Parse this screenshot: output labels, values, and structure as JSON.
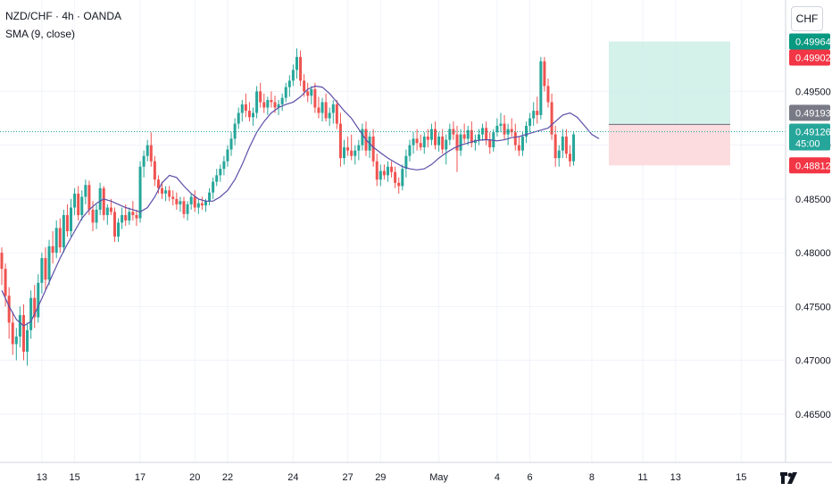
{
  "header": {
    "symbol_line": "NZD/CHF · 4h · OANDA",
    "indicator_line": "SMA (9, close)"
  },
  "currency_button": "CHF",
  "colors": {
    "up": "#26a69a",
    "down": "#ef5350",
    "sma": "#5b4ea8",
    "profit_zone": "#cdeee6",
    "loss_zone": "#fbd6d9",
    "target_tag": "#089981",
    "stop_tag": "#f23645",
    "last_price_line": "#26a69a"
  },
  "price_tags": [
    {
      "value": "0.49964",
      "label": "",
      "kind": "target"
    },
    {
      "value": "0.49902",
      "label": "",
      "kind": "stop-red"
    },
    {
      "value": "0.49193",
      "label": "",
      "kind": "entry"
    },
    {
      "value": "0.49126",
      "label": "45:00",
      "kind": "last"
    },
    {
      "value": "0.48812",
      "label": "",
      "kind": "stop"
    }
  ],
  "chart_data": {
    "type": "candlestick",
    "title": "",
    "xlabel": "",
    "ylabel": "",
    "y_axis_side": "right",
    "ylim": [
      0.4605,
      0.5035
    ],
    "yticks": [
      "0.46500",
      "0.47000",
      "0.47500",
      "0.48000",
      "0.48500",
      "0.49000",
      "0.49500"
    ],
    "x_tick_labels": [
      "13",
      "15",
      "17",
      "20",
      "22",
      "24",
      "27",
      "29",
      "May",
      "4",
      "6",
      "8",
      "11",
      "13",
      "15"
    ],
    "x_tick_candle_index": [
      11,
      20,
      38,
      53,
      62,
      80,
      95,
      104,
      120,
      136,
      145,
      162,
      176,
      185,
      203
    ],
    "grid": true,
    "candles_ohlc": [
      [
        0.48,
        0.4805,
        0.477,
        0.4785
      ],
      [
        0.4785,
        0.479,
        0.475,
        0.476
      ],
      [
        0.476,
        0.4768,
        0.472,
        0.4735
      ],
      [
        0.4735,
        0.4745,
        0.4705,
        0.4715
      ],
      [
        0.4715,
        0.473,
        0.47,
        0.4722
      ],
      [
        0.4722,
        0.475,
        0.4712,
        0.4742
      ],
      [
        0.4742,
        0.4752,
        0.47,
        0.4708
      ],
      [
        0.4708,
        0.4735,
        0.4695,
        0.4728
      ],
      [
        0.4728,
        0.4765,
        0.472,
        0.4758
      ],
      [
        0.4758,
        0.477,
        0.473,
        0.474
      ],
      [
        0.474,
        0.478,
        0.4735,
        0.4772
      ],
      [
        0.4772,
        0.48,
        0.4762,
        0.4795
      ],
      [
        0.4795,
        0.4805,
        0.4765,
        0.4775
      ],
      [
        0.4775,
        0.4812,
        0.477,
        0.4806
      ],
      [
        0.4806,
        0.482,
        0.479,
        0.48
      ],
      [
        0.48,
        0.483,
        0.4795,
        0.4823
      ],
      [
        0.4823,
        0.4832,
        0.48,
        0.4805
      ],
      [
        0.4805,
        0.484,
        0.48,
        0.4835
      ],
      [
        0.4835,
        0.4845,
        0.4815,
        0.482
      ],
      [
        0.482,
        0.485,
        0.4815,
        0.4842
      ],
      [
        0.4842,
        0.486,
        0.4835,
        0.4855
      ],
      [
        0.4855,
        0.4862,
        0.483,
        0.4835
      ],
      [
        0.4835,
        0.4858,
        0.483,
        0.4852
      ],
      [
        0.4852,
        0.4868,
        0.4845,
        0.4863
      ],
      [
        0.4863,
        0.4867,
        0.4835,
        0.484
      ],
      [
        0.484,
        0.4848,
        0.482,
        0.4828
      ],
      [
        0.4828,
        0.4845,
        0.4822,
        0.484
      ],
      [
        0.484,
        0.4865,
        0.4835,
        0.486
      ],
      [
        0.486,
        0.4862,
        0.483,
        0.4835
      ],
      [
        0.4835,
        0.4845,
        0.4826,
        0.4842
      ],
      [
        0.4842,
        0.485,
        0.4835,
        0.4838
      ],
      [
        0.4838,
        0.4842,
        0.481,
        0.4815
      ],
      [
        0.4815,
        0.4832,
        0.481,
        0.4828
      ],
      [
        0.4828,
        0.4842,
        0.4822,
        0.4835
      ],
      [
        0.4835,
        0.4845,
        0.4825,
        0.483
      ],
      [
        0.483,
        0.4842,
        0.4826,
        0.4838
      ],
      [
        0.4838,
        0.4848,
        0.483,
        0.4835
      ],
      [
        0.4835,
        0.484,
        0.4825,
        0.4832
      ],
      [
        0.4832,
        0.4885,
        0.4828,
        0.488
      ],
      [
        0.488,
        0.4895,
        0.487,
        0.489
      ],
      [
        0.489,
        0.4905,
        0.4885,
        0.49
      ],
      [
        0.49,
        0.4912,
        0.488,
        0.4885
      ],
      [
        0.4885,
        0.489,
        0.4862,
        0.4868
      ],
      [
        0.4868,
        0.4872,
        0.4855,
        0.486
      ],
      [
        0.486,
        0.4866,
        0.485,
        0.4855
      ],
      [
        0.4855,
        0.4862,
        0.4848,
        0.4858
      ],
      [
        0.4858,
        0.4862,
        0.4848,
        0.4852
      ],
      [
        0.4852,
        0.4858,
        0.4844,
        0.485
      ],
      [
        0.485,
        0.4856,
        0.484,
        0.4845
      ],
      [
        0.4845,
        0.4852,
        0.4838,
        0.4848
      ],
      [
        0.4848,
        0.4852,
        0.4832,
        0.4836
      ],
      [
        0.4836,
        0.4848,
        0.483,
        0.4845
      ],
      [
        0.4845,
        0.4855,
        0.484,
        0.4852
      ],
      [
        0.4852,
        0.4858,
        0.4838,
        0.4842
      ],
      [
        0.4842,
        0.485,
        0.4836,
        0.4846
      ],
      [
        0.4846,
        0.4852,
        0.484,
        0.4844
      ],
      [
        0.4844,
        0.485,
        0.4838,
        0.4848
      ],
      [
        0.4848,
        0.486,
        0.4844,
        0.4856
      ],
      [
        0.4856,
        0.487,
        0.485,
        0.4866
      ],
      [
        0.4866,
        0.4878,
        0.4862,
        0.4872
      ],
      [
        0.4872,
        0.4882,
        0.4866,
        0.4878
      ],
      [
        0.4878,
        0.489,
        0.4872,
        0.4885
      ],
      [
        0.4885,
        0.49,
        0.488,
        0.4896
      ],
      [
        0.4896,
        0.4912,
        0.489,
        0.4906
      ],
      [
        0.4906,
        0.4925,
        0.49,
        0.492
      ],
      [
        0.492,
        0.4935,
        0.4915,
        0.493
      ],
      [
        0.493,
        0.4942,
        0.4922,
        0.4938
      ],
      [
        0.4938,
        0.4948,
        0.4926,
        0.4932
      ],
      [
        0.4932,
        0.494,
        0.4922,
        0.4926
      ],
      [
        0.4926,
        0.4935,
        0.4918,
        0.493
      ],
      [
        0.493,
        0.4955,
        0.4925,
        0.495
      ],
      [
        0.495,
        0.4958,
        0.4935,
        0.494
      ],
      [
        0.494,
        0.4948,
        0.493,
        0.4935
      ],
      [
        0.4935,
        0.4945,
        0.4928,
        0.4942
      ],
      [
        0.4942,
        0.495,
        0.4935,
        0.494
      ],
      [
        0.494,
        0.4946,
        0.493,
        0.4935
      ],
      [
        0.4935,
        0.4942,
        0.4928,
        0.4938
      ],
      [
        0.4938,
        0.4948,
        0.4932,
        0.4944
      ],
      [
        0.4944,
        0.4958,
        0.494,
        0.4954
      ],
      [
        0.4954,
        0.4965,
        0.4945,
        0.496
      ],
      [
        0.496,
        0.4975,
        0.4955,
        0.497
      ],
      [
        0.497,
        0.499,
        0.4962,
        0.4982
      ],
      [
        0.4982,
        0.4988,
        0.4955,
        0.496
      ],
      [
        0.496,
        0.4966,
        0.4945,
        0.495
      ],
      [
        0.495,
        0.4958,
        0.494,
        0.4946
      ],
      [
        0.4946,
        0.4955,
        0.4938,
        0.4952
      ],
      [
        0.4952,
        0.4958,
        0.493,
        0.4935
      ],
      [
        0.4935,
        0.4945,
        0.4925,
        0.493
      ],
      [
        0.493,
        0.4944,
        0.4922,
        0.494
      ],
      [
        0.494,
        0.4948,
        0.4922,
        0.4925
      ],
      [
        0.4925,
        0.4935,
        0.4918,
        0.493
      ],
      [
        0.493,
        0.4942,
        0.492,
        0.4938
      ],
      [
        0.4938,
        0.4942,
        0.4915,
        0.492
      ],
      [
        0.492,
        0.493,
        0.488,
        0.4888
      ],
      [
        0.4888,
        0.4905,
        0.4882,
        0.4898
      ],
      [
        0.4898,
        0.4908,
        0.489,
        0.4895
      ],
      [
        0.4895,
        0.491,
        0.4886,
        0.489
      ],
      [
        0.489,
        0.49,
        0.4882,
        0.4895
      ],
      [
        0.4895,
        0.4905,
        0.4886,
        0.49
      ],
      [
        0.49,
        0.492,
        0.4895,
        0.4915
      ],
      [
        0.4915,
        0.4922,
        0.489,
        0.4895
      ],
      [
        0.4895,
        0.4912,
        0.4888,
        0.4908
      ],
      [
        0.4908,
        0.4915,
        0.488,
        0.4885
      ],
      [
        0.4885,
        0.4892,
        0.4862,
        0.4868
      ],
      [
        0.4868,
        0.4882,
        0.4862,
        0.4876
      ],
      [
        0.4876,
        0.4882,
        0.4868,
        0.4872
      ],
      [
        0.4872,
        0.4885,
        0.4866,
        0.488
      ],
      [
        0.488,
        0.4885,
        0.487,
        0.4875
      ],
      [
        0.4875,
        0.488,
        0.486,
        0.4865
      ],
      [
        0.4865,
        0.487,
        0.4855,
        0.4862
      ],
      [
        0.4862,
        0.4882,
        0.4858,
        0.4878
      ],
      [
        0.4878,
        0.4896,
        0.487,
        0.489
      ],
      [
        0.489,
        0.4905,
        0.4885,
        0.49
      ],
      [
        0.49,
        0.4912,
        0.4892,
        0.4906
      ],
      [
        0.4906,
        0.4915,
        0.4895,
        0.4902
      ],
      [
        0.4902,
        0.491,
        0.4895,
        0.4898
      ],
      [
        0.4898,
        0.4912,
        0.4892,
        0.4908
      ],
      [
        0.4908,
        0.4915,
        0.4898,
        0.4905
      ],
      [
        0.4905,
        0.492,
        0.49,
        0.4915
      ],
      [
        0.4915,
        0.4922,
        0.4896,
        0.49
      ],
      [
        0.49,
        0.4912,
        0.4894,
        0.4908
      ],
      [
        0.4908,
        0.4915,
        0.4892,
        0.4896
      ],
      [
        0.4896,
        0.491,
        0.4882,
        0.4905
      ],
      [
        0.4905,
        0.492,
        0.49,
        0.4915
      ],
      [
        0.4915,
        0.4922,
        0.4905,
        0.491
      ],
      [
        0.491,
        0.4918,
        0.4875,
        0.4895
      ],
      [
        0.4895,
        0.4915,
        0.489,
        0.491
      ],
      [
        0.491,
        0.492,
        0.4902,
        0.4906
      ],
      [
        0.4906,
        0.4918,
        0.49,
        0.4914
      ],
      [
        0.4914,
        0.4922,
        0.4898,
        0.4902
      ],
      [
        0.4902,
        0.491,
        0.4895,
        0.4905
      ],
      [
        0.4905,
        0.4915,
        0.49,
        0.491
      ],
      [
        0.491,
        0.492,
        0.4904,
        0.4916
      ],
      [
        0.4916,
        0.4922,
        0.49,
        0.4905
      ],
      [
        0.4905,
        0.4912,
        0.4892,
        0.4898
      ],
      [
        0.4898,
        0.4915,
        0.4894,
        0.4912
      ],
      [
        0.4912,
        0.4925,
        0.4908,
        0.4918
      ],
      [
        0.4918,
        0.493,
        0.4912,
        0.492
      ],
      [
        0.492,
        0.4928,
        0.4905,
        0.491
      ],
      [
        0.491,
        0.492,
        0.49,
        0.4915
      ],
      [
        0.4915,
        0.4925,
        0.4908,
        0.4912
      ],
      [
        0.4912,
        0.492,
        0.4895,
        0.49
      ],
      [
        0.49,
        0.4908,
        0.489,
        0.4895
      ],
      [
        0.4895,
        0.4912,
        0.489,
        0.4908
      ],
      [
        0.4908,
        0.4922,
        0.4902,
        0.4918
      ],
      [
        0.4918,
        0.493,
        0.4912,
        0.4925
      ],
      [
        0.4925,
        0.494,
        0.4918,
        0.4932
      ],
      [
        0.4932,
        0.4945,
        0.492,
        0.4928
      ],
      [
        0.4928,
        0.4982,
        0.4924,
        0.4978
      ],
      [
        0.4978,
        0.4982,
        0.495,
        0.4955
      ],
      [
        0.4955,
        0.4962,
        0.4935,
        0.494
      ],
      [
        0.494,
        0.4948,
        0.4905,
        0.491
      ],
      [
        0.491,
        0.4918,
        0.488,
        0.4888
      ],
      [
        0.4888,
        0.49,
        0.488,
        0.4895
      ],
      [
        0.4895,
        0.4915,
        0.4888,
        0.4908
      ],
      [
        0.4908,
        0.4915,
        0.4888,
        0.4892
      ],
      [
        0.4892,
        0.49,
        0.488,
        0.4885
      ],
      [
        0.4885,
        0.4912,
        0.4881,
        0.491
      ]
    ],
    "sma_9": [
      0.4765,
      0.475,
      0.4738,
      0.4732,
      0.4736,
      0.475,
      0.4765,
      0.478,
      0.4795,
      0.4808,
      0.482,
      0.4832,
      0.484,
      0.4846,
      0.485,
      0.4848,
      0.4845,
      0.4842,
      0.484,
      0.4838,
      0.4842,
      0.4852,
      0.4865,
      0.4872,
      0.487,
      0.4862,
      0.4855,
      0.485,
      0.4848,
      0.4848,
      0.4852,
      0.4858,
      0.4868,
      0.4882,
      0.4898,
      0.4912,
      0.4922,
      0.493,
      0.4935,
      0.4938,
      0.494,
      0.4945,
      0.4952,
      0.4955,
      0.4954,
      0.4948,
      0.494,
      0.4932,
      0.4925,
      0.4915,
      0.4905,
      0.4898,
      0.4893,
      0.4888,
      0.4884,
      0.488,
      0.4878,
      0.4877,
      0.4878,
      0.4882,
      0.4888,
      0.4893,
      0.4897,
      0.49,
      0.4902,
      0.4904,
      0.4905,
      0.4905,
      0.4904,
      0.4905,
      0.4907,
      0.4908,
      0.491,
      0.4912,
      0.4914,
      0.4916,
      0.4922,
      0.4928,
      0.493,
      0.4926,
      0.4918,
      0.491,
      0.4906
    ],
    "position": {
      "target": 0.49964,
      "entry": 0.49193,
      "stop": 0.48812
    },
    "last_price": 0.49126,
    "countdown": "45:00"
  }
}
